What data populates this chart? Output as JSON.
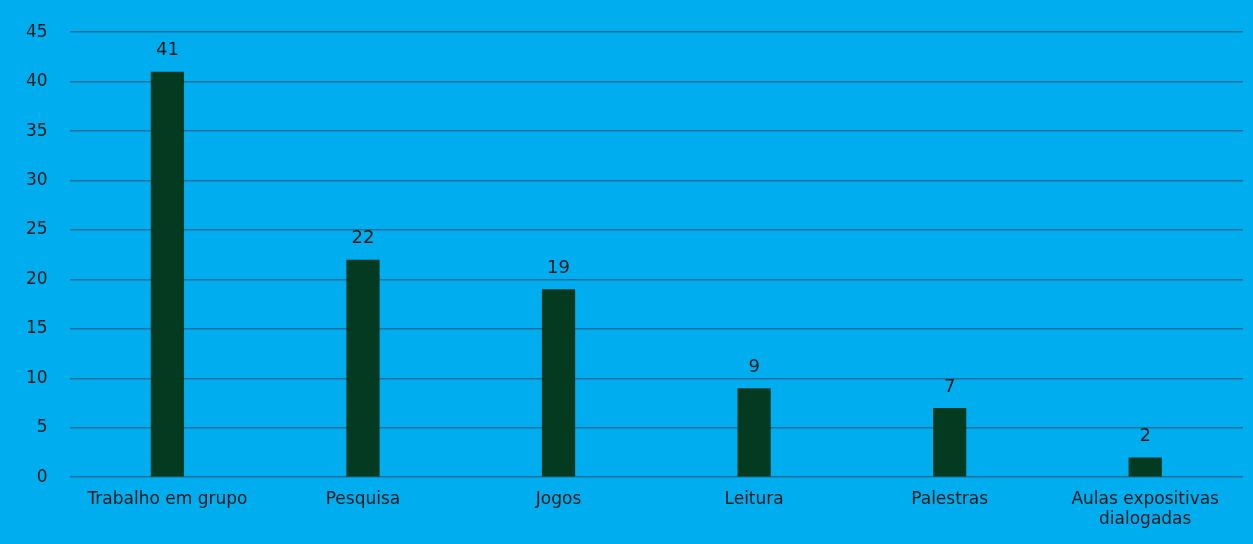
{
  "chart_data": {
    "type": "bar",
    "categories": [
      "Trabalho em grupo",
      "Pesquisa",
      "Jogos",
      "Leitura",
      "Palestras",
      "Aulas expositivas dialogadas"
    ],
    "values": [
      41,
      22,
      19,
      9,
      7,
      2
    ],
    "color": "#033a20",
    "ylim": [
      0,
      45
    ],
    "yticks": [
      0,
      5,
      10,
      15,
      20,
      25,
      30,
      35,
      40,
      45
    ],
    "grid": "y",
    "data_labels": true,
    "legend": false
  }
}
